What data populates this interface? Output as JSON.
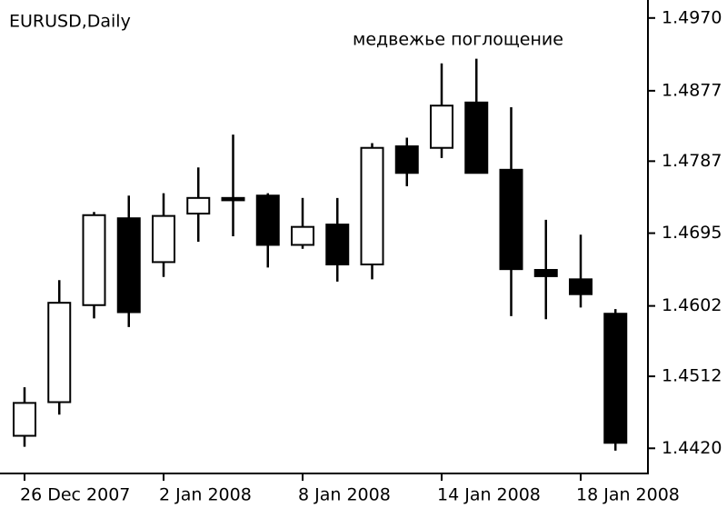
{
  "chart_data": {
    "type": "candlestick",
    "title": "EURUSD,Daily",
    "annotation": "медвежье поглощение",
    "categories": [
      "26 Dec 2007",
      null,
      null,
      null,
      "2 Jan 2008",
      null,
      null,
      null,
      "8 Jan 2008",
      null,
      null,
      null,
      "14 Jan 2008",
      null,
      null,
      null,
      "18 Jan 2008",
      null
    ],
    "open": [
      1.4436,
      1.4479,
      1.4603,
      1.4714,
      1.4658,
      1.472,
      1.474,
      1.4743,
      1.468,
      1.4706,
      1.4655,
      1.4806,
      1.4804,
      1.4862,
      1.4776,
      1.4648,
      1.4636,
      1.4592
    ],
    "high": [
      1.4498,
      1.4635,
      1.4722,
      1.4743,
      1.4746,
      1.4779,
      1.4821,
      1.4746,
      1.474,
      1.474,
      1.481,
      1.4817,
      1.4912,
      1.4918,
      1.4856,
      1.4712,
      1.4693,
      1.4598
    ],
    "low": [
      1.4422,
      1.4463,
      1.4586,
      1.4575,
      1.4639,
      1.4684,
      1.4691,
      1.4651,
      1.4675,
      1.4633,
      1.4636,
      1.4755,
      1.4791,
      1.4772,
      1.4589,
      1.4585,
      1.46,
      1.4417
    ],
    "close": [
      1.4478,
      1.4606,
      1.4718,
      1.4594,
      1.4717,
      1.474,
      1.4737,
      1.468,
      1.4703,
      1.4655,
      1.4804,
      1.4772,
      1.4858,
      1.4772,
      1.4649,
      1.464,
      1.4617,
      1.4427
    ],
    "up_color": "#ffffff",
    "down_color": "#000000",
    "ylim": [
      1.4389,
      1.4993
    ],
    "yticks": [
      {
        "value": 1.497,
        "label": "1.4970"
      },
      1.4877,
      1.4787,
      1.4695,
      1.4602,
      1.4512,
      {
        "value": 1.442,
        "label": "1.4420"
      }
    ]
  }
}
